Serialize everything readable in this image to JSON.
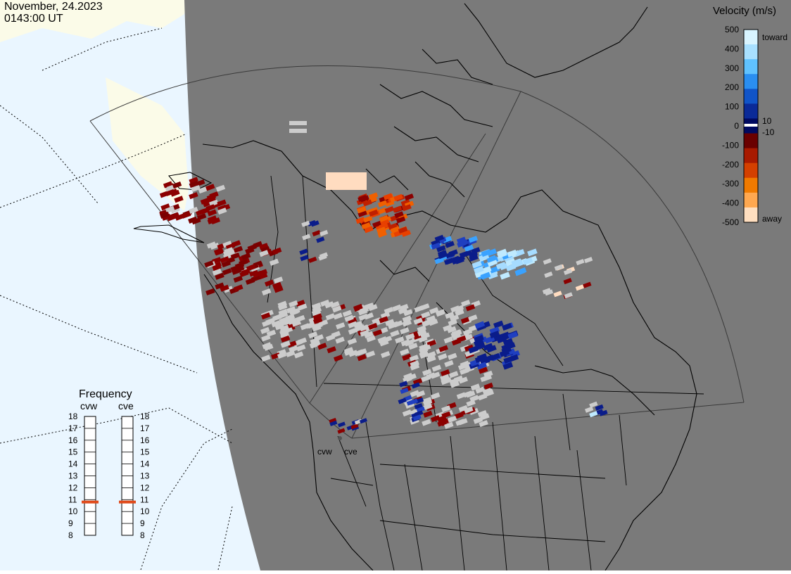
{
  "header": {
    "date": "November, 24.2023",
    "time": "0143:00 UT"
  },
  "colors": {
    "night": "#7a7a7a",
    "day_land": "#fbfbe8",
    "day_ocean": "#eaf6ff",
    "ground_scatter": "#cccccc",
    "coast": "#000000",
    "marker": "#e04a1a"
  },
  "velocity_legend": {
    "title": "Velocity (m/s)",
    "ticks": [
      "500",
      "400",
      "300",
      "200",
      "100",
      "0",
      "-100",
      "-200",
      "-300",
      "-400",
      "-500"
    ],
    "inner_ticks": [
      "10",
      "-10"
    ],
    "toward_label": "toward",
    "away_label": "away",
    "scale_colors": [
      "#d8f4ff",
      "#a8e0ff",
      "#60c2ff",
      "#2a8ef0",
      "#1054c8",
      "#0a2a98",
      "#000a60",
      "#6a0000",
      "#a81a00",
      "#d44000",
      "#f07a00",
      "#ffa850",
      "#ffdfc0"
    ]
  },
  "frequency_panel": {
    "title": "Frequency",
    "radars": [
      {
        "name": "cvw",
        "frequency_mhz": 10.8
      },
      {
        "name": "cve",
        "frequency_mhz": 10.8
      }
    ],
    "scale": [
      "18",
      "17",
      "16",
      "15",
      "14",
      "13",
      "12",
      "11",
      "10",
      "9",
      "8"
    ]
  },
  "radar_sites": [
    "cvw",
    "cve"
  ]
}
